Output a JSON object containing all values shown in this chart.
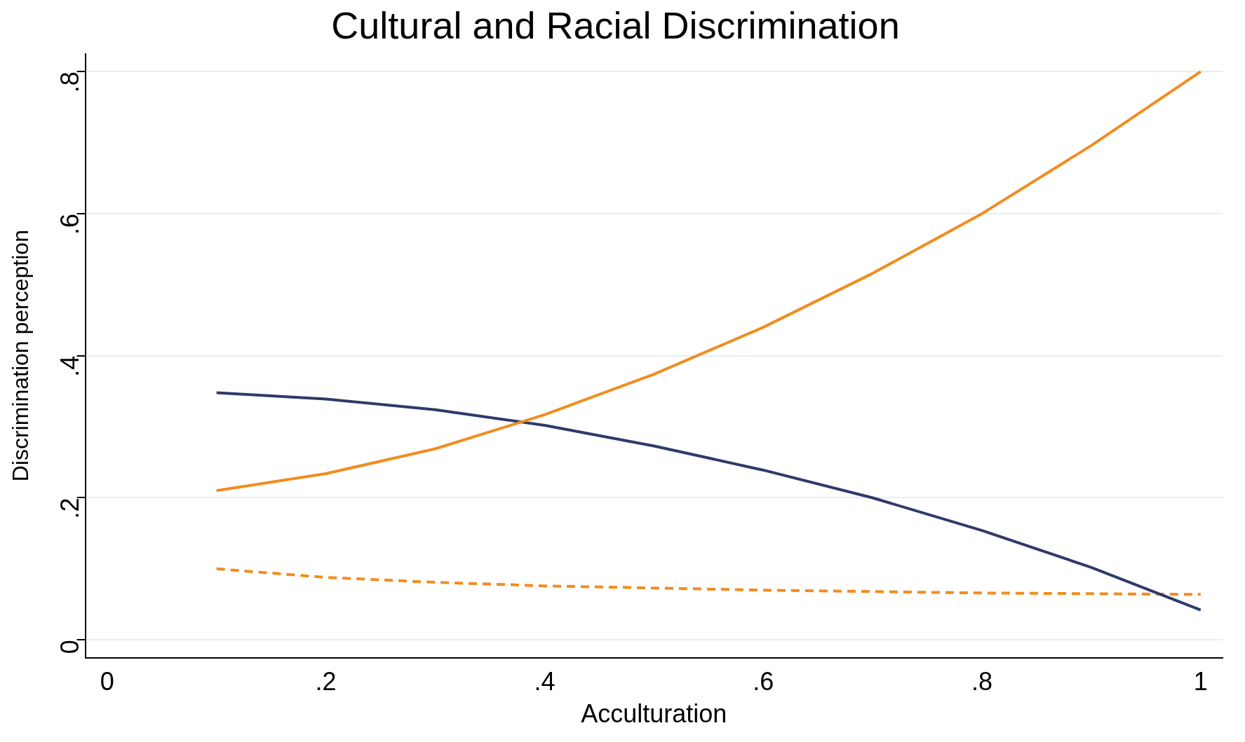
{
  "chart_data": {
    "type": "line",
    "title": "Cultural and Racial Discrimination",
    "xlabel": "Acculturation",
    "ylabel": "Discrimination perception",
    "x": [
      0.1,
      0.2,
      0.3,
      0.4,
      0.5,
      0.6,
      0.7,
      0.8,
      0.9,
      1
    ],
    "series": [
      {
        "color": "#f28c1e",
        "values": [
          0.21,
          0.234,
          0.269,
          0.317,
          0.374,
          0.44,
          0.516,
          0.6,
          0.696,
          0.8
        ]
      },
      {
        "color": "#2f3a6a",
        "values": [
          0.348,
          0.339,
          0.324,
          0.302,
          0.273,
          0.239,
          0.2,
          0.154,
          0.102,
          0.042
        ]
      },
      {
        "color": "#f28c1e",
        "line_style": "dashed",
        "values": [
          0.1,
          0.088,
          0.081,
          0.076,
          0.073,
          0.07,
          0.068,
          0.066,
          0.065,
          0.064
        ]
      }
    ],
    "xlim": [
      -0.02,
      1.02
    ],
    "ylim": [
      -0.025,
      0.825
    ],
    "xticks": [
      0,
      {
        "value": 0.2,
        "label": ".2"
      },
      {
        "value": 0.4,
        "label": ".4"
      },
      {
        "value": 0.6,
        "label": ".6"
      },
      {
        "value": 0.8,
        "label": ".8"
      },
      1
    ],
    "yticks": [
      0,
      {
        "value": 0.2,
        "label": ".2"
      },
      {
        "value": 0.4,
        "label": ".4"
      },
      {
        "value": 0.6,
        "label": ".6"
      },
      {
        "value": 0.8,
        "label": ".8"
      }
    ],
    "grid": "y",
    "legend": false,
    "marker": "none",
    "line_style": "solid"
  }
}
